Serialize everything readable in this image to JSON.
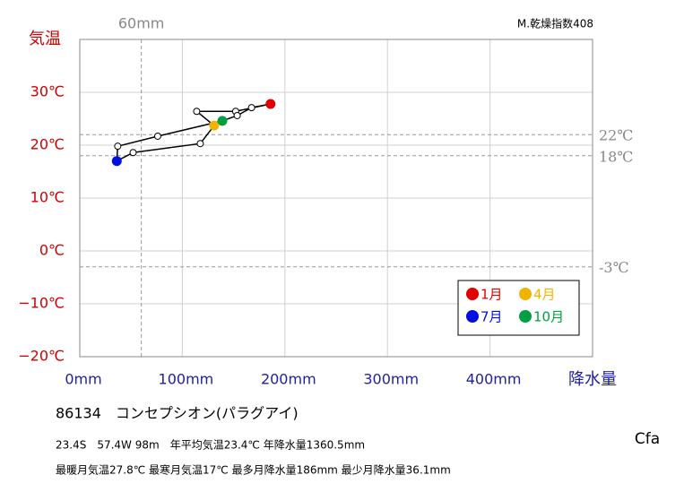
{
  "chart_data": {
    "type": "hythergraph",
    "y_title": "気温",
    "x_title": "降水量",
    "corner_note": "M.乾燥指数408",
    "station": "86134　コンセプシオン(パラグアイ)",
    "info_lines": [
      "23.4S　57.4W 98m　年平均気温23.4℃ 年降水量1360.5mm",
      "最暖月気温27.8℃ 最寒月気温17℃ 最多月降水量186mm 最少月降水量36.1mm"
    ],
    "climate_class": "Cfa",
    "x": [
      186,
      152,
      114,
      131,
      117.5,
      52,
      36.1,
      37,
      76,
      139,
      153.5,
      167.5
    ],
    "series": [
      {
        "values": [
          27.8,
          26.4,
          26.4,
          23.7,
          20.3,
          18.6,
          17,
          19.8,
          21.7,
          24.6,
          25.6,
          27.1
        ],
        "color": "#000000",
        "marker_colors": [
          "#e00000",
          "#ffffff",
          "#ffffff",
          "#f0b400",
          "#ffffff",
          "#ffffff",
          "#0010e0",
          "#ffffff",
          "#ffffff",
          "#00a040",
          "#ffffff",
          "#ffffff"
        ]
      }
    ],
    "legend": [
      {
        "label": "1月",
        "color": "#e00000"
      },
      {
        "label": "4月",
        "color": "#f0b400"
      },
      {
        "label": "7月",
        "color": "#0010e0"
      },
      {
        "label": "10月",
        "color": "#00a040"
      }
    ],
    "xlim": [
      0,
      500
    ],
    "ylim": [
      -20,
      40
    ],
    "xticks": [
      {
        "value": 0,
        "label": "0mm"
      },
      {
        "value": 100,
        "label": "100mm"
      },
      {
        "value": 200,
        "label": "200mm"
      },
      {
        "value": 300,
        "label": "300mm"
      },
      {
        "value": 400,
        "label": "400mm"
      }
    ],
    "yticks": [
      {
        "value": -20,
        "label": "−20℃"
      },
      {
        "value": -10,
        "label": "−10℃"
      },
      {
        "value": 0,
        "label": "0℃"
      },
      {
        "value": 10,
        "label": "10℃"
      },
      {
        "value": 20,
        "label": "20℃"
      },
      {
        "value": 30,
        "label": "30℃"
      }
    ],
    "hlines": [
      {
        "value": 22,
        "label": "22℃"
      },
      {
        "value": 18,
        "label": "18℃"
      },
      {
        "value": -3,
        "label": "-3℃"
      }
    ],
    "vlines": [
      {
        "value": 60,
        "label": "60mm"
      }
    ],
    "grid": true
  }
}
